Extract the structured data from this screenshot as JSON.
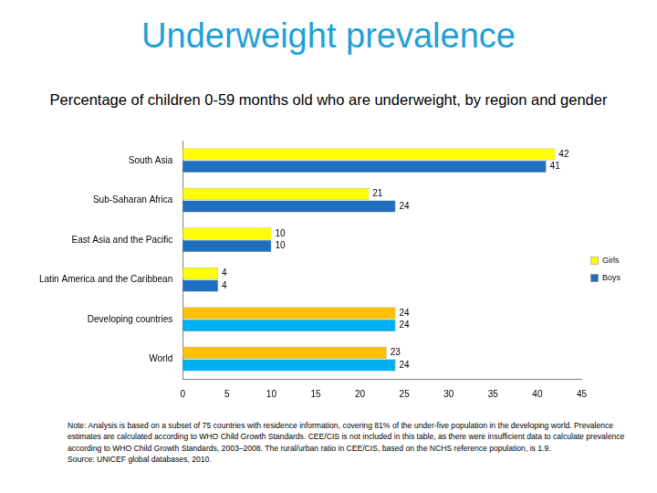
{
  "chart_data": {
    "type": "bar",
    "orientation": "horizontal",
    "title": "Underweight prevalence",
    "subtitle": "Percentage of children 0-59 months old who are underweight, by region and gender",
    "categories": [
      "South Asia",
      "Sub-Saharan Africa",
      "East Asia and the Pacific",
      "Latin America and the Caribbean",
      "Developing countries",
      "World"
    ],
    "series": [
      {
        "name": "Girls",
        "colors": [
          "#ffff00",
          "#ffff00",
          "#ffff00",
          "#ffff00",
          "#ffc000",
          "#ffc000"
        ],
        "values": [
          42,
          21,
          10,
          4,
          24,
          23
        ]
      },
      {
        "name": "Boys",
        "colors": [
          "#1f6fc0",
          "#1f6fc0",
          "#1f6fc0",
          "#1f6fc0",
          "#00b0f0",
          "#00b0f0"
        ],
        "values": [
          41,
          24,
          10,
          4,
          24,
          24
        ]
      }
    ],
    "xlim": [
      0,
      45
    ],
    "xticks": [
      0,
      5,
      10,
      15,
      20,
      25,
      30,
      35,
      40,
      45
    ],
    "grid": false,
    "legend": "right",
    "data_labels": true,
    "annotations": [
      "Note: Analysis is based on a subset of 75 countries with residence information, covering 81% of the under-five population in the developing world. Prevalence estimates are calculated according to WHO Child Growth Standards. CEE/CIS is not included in this table, as there were insufficient data to calculate prevalence according to WHO Child Growth Standards, 2003–2008. The rural/urban ratio in CEE/CIS, based on the NCHS reference population, is 1.9.",
      "Source: UNICEF global databases, 2010."
    ]
  }
}
